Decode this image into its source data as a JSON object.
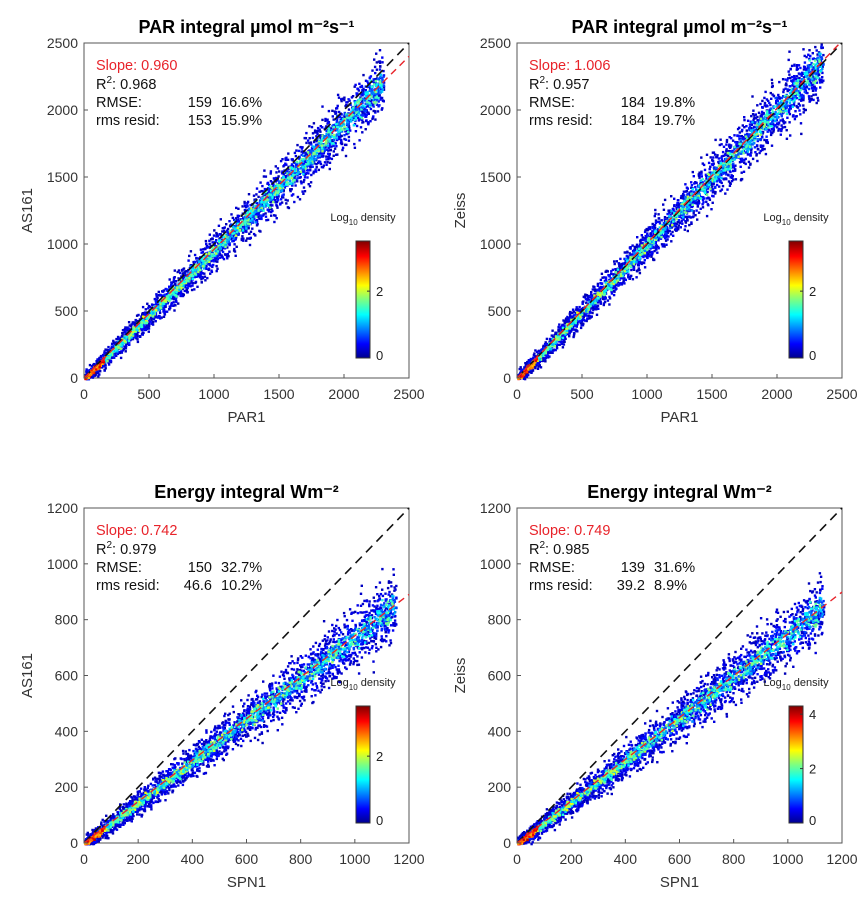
{
  "chart_data": [
    {
      "type": "scatter",
      "title": "PAR integral µmol m⁻²s⁻¹",
      "xlabel": "PAR1",
      "ylabel": "AS161",
      "xlim": [
        0,
        2500
      ],
      "ylim": [
        0,
        2500
      ],
      "xticks": [
        "0",
        "500",
        "1000",
        "1500",
        "2000",
        "2500"
      ],
      "yticks": [
        "0",
        "500",
        "1000",
        "1500",
        "2000",
        "2500"
      ],
      "slope": 0.96,
      "data_max": 2300,
      "stats": {
        "slope": "Slope: 0.960",
        "r2_value": ": 0.968",
        "rmse_label": "RMSE:",
        "rmse_value": "159",
        "rmse_pct": "16.6%",
        "resid_label": "rms resid:",
        "resid_value": "153",
        "resid_pct": "15.9%"
      },
      "colorbar": {
        "label": "Log",
        "label_sub": "10",
        "label_suffix": " density",
        "ticks": [
          "0",
          "2"
        ],
        "range": [
          0,
          3.5
        ]
      }
    },
    {
      "type": "scatter",
      "title": "PAR integral µmol m⁻²s⁻¹",
      "xlabel": "PAR1",
      "ylabel": "Zeiss",
      "xlim": [
        0,
        2500
      ],
      "ylim": [
        0,
        2500
      ],
      "xticks": [
        "0",
        "500",
        "1000",
        "1500",
        "2000",
        "2500"
      ],
      "yticks": [
        "0",
        "500",
        "1000",
        "1500",
        "2000",
        "2500"
      ],
      "slope": 1.006,
      "data_max": 2350,
      "stats": {
        "slope": "Slope: 1.006",
        "r2_value": ": 0.957",
        "rmse_label": "RMSE:",
        "rmse_value": "184",
        "rmse_pct": "19.8%",
        "resid_label": "rms resid:",
        "resid_value": "184",
        "resid_pct": "19.7%"
      },
      "colorbar": {
        "label": "Log",
        "label_sub": "10",
        "label_suffix": " density",
        "ticks": [
          "0",
          "2"
        ],
        "range": [
          0,
          3.5
        ]
      }
    },
    {
      "type": "scatter",
      "title": "Energy integral Wm⁻²",
      "xlabel": "SPN1",
      "ylabel": "AS161",
      "xlim": [
        0,
        1200
      ],
      "ylim": [
        0,
        1200
      ],
      "xticks": [
        "0",
        "200",
        "400",
        "600",
        "800",
        "1000",
        "1200"
      ],
      "yticks": [
        "0",
        "200",
        "400",
        "600",
        "800",
        "1000",
        "1200"
      ],
      "slope": 0.742,
      "data_max": 1150,
      "stats": {
        "slope": "Slope: 0.742",
        "r2_value": ": 0.979",
        "rmse_label": "RMSE:",
        "rmse_value": "150",
        "rmse_pct": "32.7%",
        "resid_label": "rms resid:",
        "resid_value": "46.6",
        "resid_pct": "10.2%"
      },
      "colorbar": {
        "label": "Log",
        "label_sub": "10",
        "label_suffix": " density",
        "ticks": [
          "0",
          "2"
        ],
        "range": [
          0,
          3.5
        ]
      }
    },
    {
      "type": "scatter",
      "title": "Energy integral Wm⁻²",
      "xlabel": "SPN1",
      "ylabel": "Zeiss",
      "xlim": [
        0,
        1200
      ],
      "ylim": [
        0,
        1200
      ],
      "xticks": [
        "0",
        "200",
        "400",
        "600",
        "800",
        "1000",
        "1200"
      ],
      "yticks": [
        "0",
        "200",
        "400",
        "600",
        "800",
        "1000",
        "1200"
      ],
      "slope": 0.749,
      "data_max": 1130,
      "stats": {
        "slope": "Slope: 0.749",
        "r2_value": ": 0.985",
        "rmse_label": "RMSE:",
        "rmse_value": "139",
        "rmse_pct": "31.6%",
        "resid_label": "rms resid:",
        "resid_value": "39.2",
        "resid_pct": "8.9%"
      },
      "colorbar": {
        "label": "Log",
        "label_sub": "10",
        "label_suffix": " density",
        "ticks": [
          "0",
          "2",
          "4"
        ],
        "range": [
          0,
          4.3
        ]
      }
    }
  ]
}
